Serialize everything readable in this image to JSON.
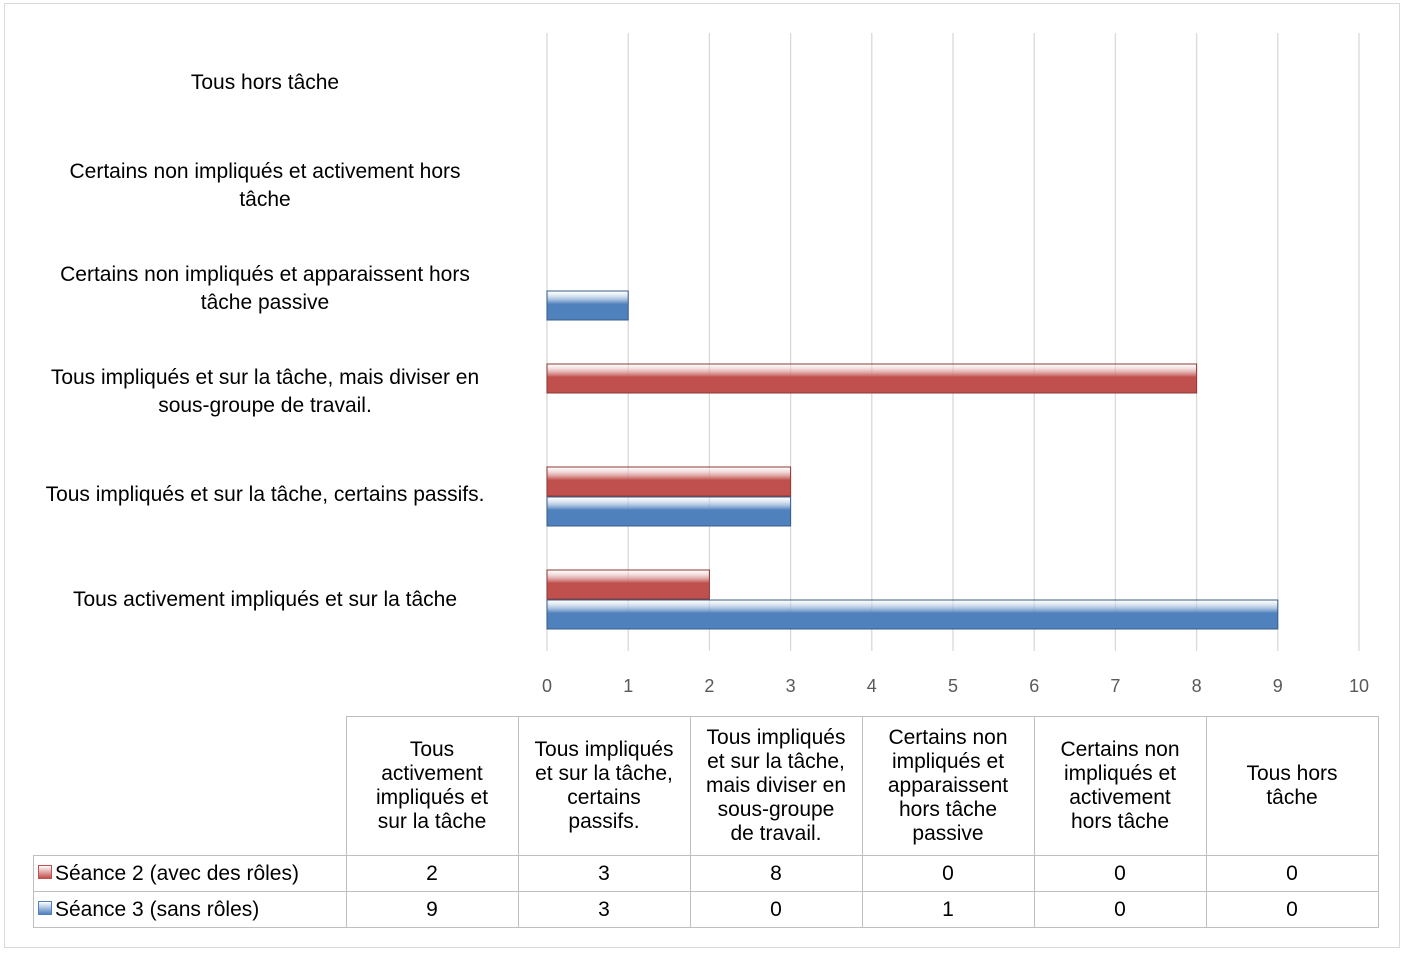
{
  "chart_data": {
    "type": "bar",
    "orientation": "horizontal",
    "categories": [
      "Tous activement impliqués et sur la tâche",
      "Tous impliqués et sur la tâche, certains passifs.",
      "Tous impliqués et sur la tâche, mais diviser en sous-groupe de travail.",
      "Certains non impliqués et apparaissent hors tâche passive",
      "Certains non impliqués et activement hors tâche",
      "Tous hors tâche"
    ],
    "chart_labels": [
      "Tous activement impliqués et sur la tâche",
      "Tous impliqués et sur la tâche, certains passifs.",
      "Tous impliqués et sur la tâche, mais diviser en\nsous-groupe de travail.",
      "Certains non impliqués et apparaissent hors\ntâche passive",
      "Certains non impliqués et activement hors\ntâche",
      "Tous hors tâche"
    ],
    "table_headers": [
      "Tous\nactivement\nimpliqués et\nsur la tâche",
      "Tous impliqués\net sur la tâche,\ncertains\npassifs.",
      "Tous impliqués\net sur la tâche,\nmais diviser en\nsous-groupe\nde travail.",
      "Certains non\nimpliqués et\napparaissent\nhors tâche\npassive",
      "Certains non\nimpliqués et\nactivement\nhors tâche",
      "Tous hors\ntâche"
    ],
    "series": [
      {
        "name": "Séance 2 (avec des rôles)",
        "values": [
          2,
          3,
          8,
          0,
          0,
          0
        ],
        "color": "#c0504d"
      },
      {
        "name": "Séance 3 (sans rôles)",
        "values": [
          9,
          3,
          0,
          1,
          0,
          0
        ],
        "color": "#4f81bd"
      }
    ],
    "xlim": [
      0,
      10
    ],
    "x_ticks": [
      "0",
      "1",
      "2",
      "3",
      "4",
      "5",
      "6",
      "7",
      "8",
      "9",
      "10"
    ],
    "grid": true,
    "legend": "data-table"
  }
}
